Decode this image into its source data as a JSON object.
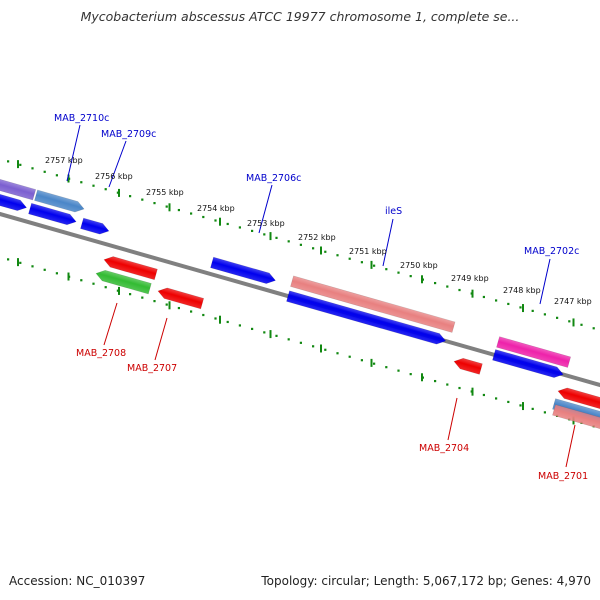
{
  "title": "Mycobacterium abscessus ATCC 19977 chromosome 1, complete se...",
  "footer": {
    "accession": "Accession: NC_010397",
    "summary": "Topology: circular; Length: 5,067,172 bp; Genes: 4,970"
  },
  "colors": {
    "forward_label": "#0000cc",
    "reverse_label": "#cc0000",
    "backbone": "#808080",
    "tick": "#118811",
    "cds_blue": "#0000ee",
    "cds_red": "#ee0000",
    "cds_green": "#33bb33",
    "cds_salmon": "#e88080",
    "cds_pink": "#ee22aa",
    "cds_steel": "#4a86c8",
    "cds_purple": "#7b5fd0"
  },
  "kbp_labels": [
    "2757 kbp",
    "2756 kbp",
    "2755 kbp",
    "2754 kbp",
    "2753 kbp",
    "2752 kbp",
    "2751 kbp",
    "2750 kbp",
    "2749 kbp",
    "2748 kbp",
    "2747 kbp"
  ],
  "genes_forward": [
    "MAB_2710c",
    "MAB_2709c",
    "MAB_2706c",
    "ileS",
    "MAB_2702c"
  ],
  "genes_reverse": [
    "MAB_2708",
    "MAB_2707",
    "MAB_2704",
    "MAB_2701"
  ]
}
